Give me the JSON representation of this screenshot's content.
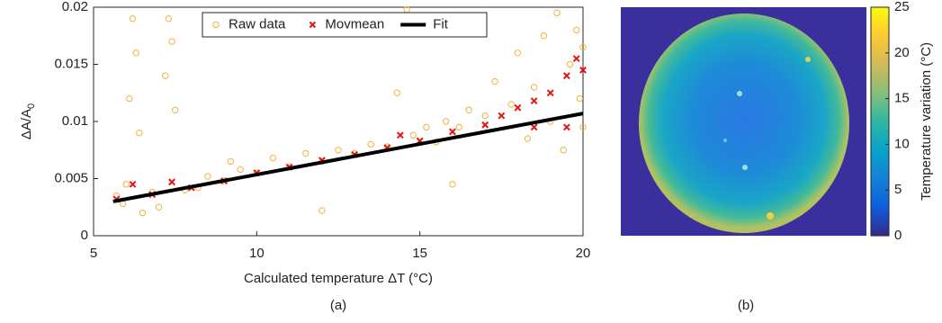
{
  "chart_data": [
    {
      "type": "scatter",
      "xlabel": "Calculated temperature  ΔT (°C)",
      "ylabel": "ΔA/A",
      "ylabel_subscript": "0",
      "caption": "(a)",
      "xlim": [
        5,
        20
      ],
      "xticks": [
        5,
        10,
        15,
        20
      ],
      "ylim": [
        0,
        0.02
      ],
      "yticks": [
        0,
        0.005,
        0.01,
        0.015,
        0.02
      ],
      "legend": "top",
      "series": [
        {
          "name": "Raw data",
          "color": "#f2b23a",
          "marker": "circle",
          "x": [
            5.7,
            5.9,
            6.0,
            6.1,
            6.2,
            6.3,
            6.4,
            6.5,
            6.8,
            7.0,
            7.2,
            7.3,
            7.4,
            7.5,
            7.8,
            8.2,
            8.5,
            9.0,
            9.2,
            9.5,
            10,
            10.5,
            11,
            11.5,
            12,
            12.5,
            13,
            13.5,
            14,
            14.3,
            14.8,
            15.2,
            15.5,
            15.8,
            16.2,
            16.5,
            17,
            17.3,
            17.8,
            18.0,
            18.3,
            18.5,
            18.8,
            19.0,
            19.2,
            19.4,
            19.6,
            19.8,
            19.9,
            20,
            20,
            14.6,
            12.0,
            16.0
          ],
          "values": [
            0.0035,
            0.0028,
            0.0045,
            0.012,
            0.019,
            0.016,
            0.009,
            0.002,
            0.0038,
            0.0025,
            0.014,
            0.019,
            0.017,
            0.011,
            0.004,
            0.0042,
            0.0052,
            0.0048,
            0.0065,
            0.0058,
            0.0055,
            0.0068,
            0.006,
            0.0072,
            0.0065,
            0.0075,
            0.0072,
            0.008,
            0.0078,
            0.0125,
            0.0088,
            0.0095,
            0.0082,
            0.01,
            0.0095,
            0.011,
            0.0105,
            0.0135,
            0.0115,
            0.016,
            0.0085,
            0.013,
            0.0175,
            0.01,
            0.0195,
            0.0075,
            0.015,
            0.018,
            0.012,
            0.0165,
            0.0095,
            0.0198,
            0.0022,
            0.0045
          ]
        },
        {
          "name": "Movmean",
          "color": "#e8120f",
          "marker": "x",
          "x": [
            5.7,
            6.2,
            6.8,
            7.4,
            8,
            9,
            10,
            11,
            12,
            13,
            14,
            14.4,
            15,
            16,
            17,
            17.5,
            18,
            18.5,
            19,
            19.5,
            19.8,
            20,
            19.5,
            18.5
          ],
          "values": [
            0.0032,
            0.0045,
            0.0036,
            0.0047,
            0.0042,
            0.0048,
            0.0055,
            0.006,
            0.0066,
            0.0071,
            0.0077,
            0.0088,
            0.0083,
            0.0091,
            0.0097,
            0.0105,
            0.0112,
            0.0118,
            0.0125,
            0.014,
            0.0155,
            0.0145,
            0.0095,
            0.0095
          ]
        },
        {
          "name": "Fit",
          "color": "#000000",
          "marker": "line",
          "x": [
            5.6,
            20
          ],
          "values": [
            0.003,
            0.0107
          ]
        }
      ]
    },
    {
      "type": "heatmap",
      "caption": "(b)",
      "colormap": "parula",
      "clabel": "Temperature variation (°C)",
      "clim": [
        0,
        25
      ],
      "cticks": [
        0,
        5,
        10,
        15,
        20,
        25
      ]
    }
  ]
}
